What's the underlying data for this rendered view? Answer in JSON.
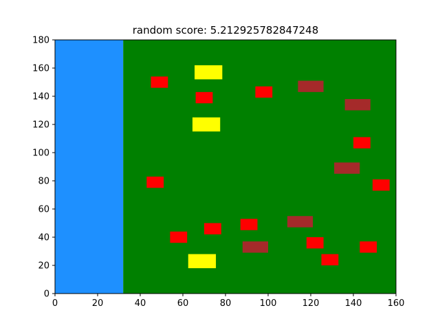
{
  "title": "random score: 5.212925782847248",
  "colors": {
    "water": "#1e90ff",
    "grass": "#008000",
    "red": "#ff0000",
    "brown": "#a52a2a",
    "yellow": "#ffff00"
  },
  "chart_data": {
    "type": "heatmap",
    "title": "random score: 5.212925782847248",
    "xlim": [
      0,
      160
    ],
    "ylim": [
      0,
      180
    ],
    "xticks": [
      0,
      20,
      40,
      60,
      80,
      100,
      120,
      140,
      160
    ],
    "yticks": [
      0,
      20,
      40,
      60,
      80,
      100,
      120,
      140,
      160,
      180
    ],
    "grid": false,
    "regions": [
      {
        "kind": "water",
        "x0": 0,
        "x1": 32,
        "y0": 0,
        "y1": 180,
        "color": "#1e90ff"
      },
      {
        "kind": "grass",
        "x0": 32,
        "x1": 160,
        "y0": 0,
        "y1": 180,
        "color": "#008000"
      }
    ],
    "objects": [
      {
        "kind": "red",
        "x": 49,
        "y": 150,
        "w": 8,
        "h": 8
      },
      {
        "kind": "red",
        "x": 70,
        "y": 139,
        "w": 8,
        "h": 8
      },
      {
        "kind": "red",
        "x": 98,
        "y": 143,
        "w": 8,
        "h": 8
      },
      {
        "kind": "red",
        "x": 144,
        "y": 107,
        "w": 8,
        "h": 8
      },
      {
        "kind": "red",
        "x": 47,
        "y": 79,
        "w": 8,
        "h": 8
      },
      {
        "kind": "red",
        "x": 153,
        "y": 77,
        "w": 8,
        "h": 8
      },
      {
        "kind": "red",
        "x": 58,
        "y": 40,
        "w": 8,
        "h": 8
      },
      {
        "kind": "red",
        "x": 74,
        "y": 46,
        "w": 8,
        "h": 8
      },
      {
        "kind": "red",
        "x": 91,
        "y": 49,
        "w": 8,
        "h": 8
      },
      {
        "kind": "red",
        "x": 122,
        "y": 36,
        "w": 8,
        "h": 8
      },
      {
        "kind": "red",
        "x": 147,
        "y": 33,
        "w": 8,
        "h": 8
      },
      {
        "kind": "red",
        "x": 129,
        "y": 24,
        "w": 8,
        "h": 8
      },
      {
        "kind": "brown",
        "x": 120,
        "y": 147,
        "w": 12,
        "h": 8
      },
      {
        "kind": "brown",
        "x": 142,
        "y": 134,
        "w": 12,
        "h": 8
      },
      {
        "kind": "brown",
        "x": 137,
        "y": 89,
        "w": 12,
        "h": 8
      },
      {
        "kind": "brown",
        "x": 115,
        "y": 51,
        "w": 12,
        "h": 8
      },
      {
        "kind": "brown",
        "x": 94,
        "y": 33,
        "w": 12,
        "h": 8
      },
      {
        "kind": "yellow",
        "x": 72,
        "y": 157,
        "w": 13,
        "h": 10
      },
      {
        "kind": "yellow",
        "x": 71,
        "y": 120,
        "w": 13,
        "h": 10
      },
      {
        "kind": "yellow",
        "x": 69,
        "y": 23,
        "w": 13,
        "h": 10
      }
    ]
  }
}
